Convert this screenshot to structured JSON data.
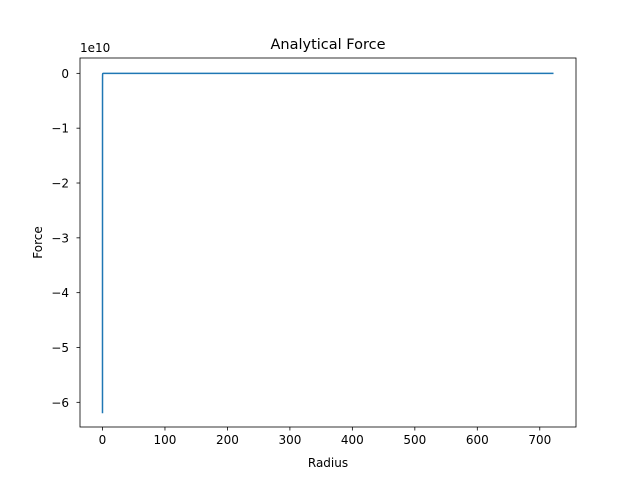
{
  "chart_data": {
    "type": "line",
    "title": "Analytical Force",
    "xlabel": "Radius",
    "ylabel": "Force",
    "y_offset_label": "1e10",
    "xlim": [
      -36,
      758
    ],
    "ylim": [
      -64500000000.0,
      2800000000.0
    ],
    "x_ticks": [
      0,
      100,
      200,
      300,
      400,
      500,
      600,
      700
    ],
    "x_tick_labels": [
      "0",
      "100",
      "200",
      "300",
      "400",
      "500",
      "600",
      "700"
    ],
    "y_ticks": [
      0,
      -10000000000.0,
      -20000000000.0,
      -30000000000.0,
      -40000000000.0,
      -50000000000.0,
      -60000000000.0
    ],
    "y_tick_labels": [
      "0",
      "−1",
      "−2",
      "−3",
      "−4",
      "−5",
      "−6"
    ],
    "grid": false,
    "series": [
      {
        "color": "#1f77b4",
        "x": [
          0.0,
          0.05,
          0.1,
          0.2,
          0.3,
          0.5,
          1.0,
          2.0,
          5.0,
          10,
          50,
          100,
          200,
          300,
          400,
          500,
          600,
          700,
          722
        ],
        "y": [
          -62000000000.0,
          -3100000000.0,
          -780000000.0,
          -190000000.0,
          -86000000.0,
          -31000000.0,
          -7800000.0,
          -1900000.0,
          -310000.0,
          -78000.0,
          -3100.0,
          -780.0,
          -190.0,
          -86,
          -48,
          -31,
          -21,
          -16,
          -15
        ]
      }
    ]
  }
}
